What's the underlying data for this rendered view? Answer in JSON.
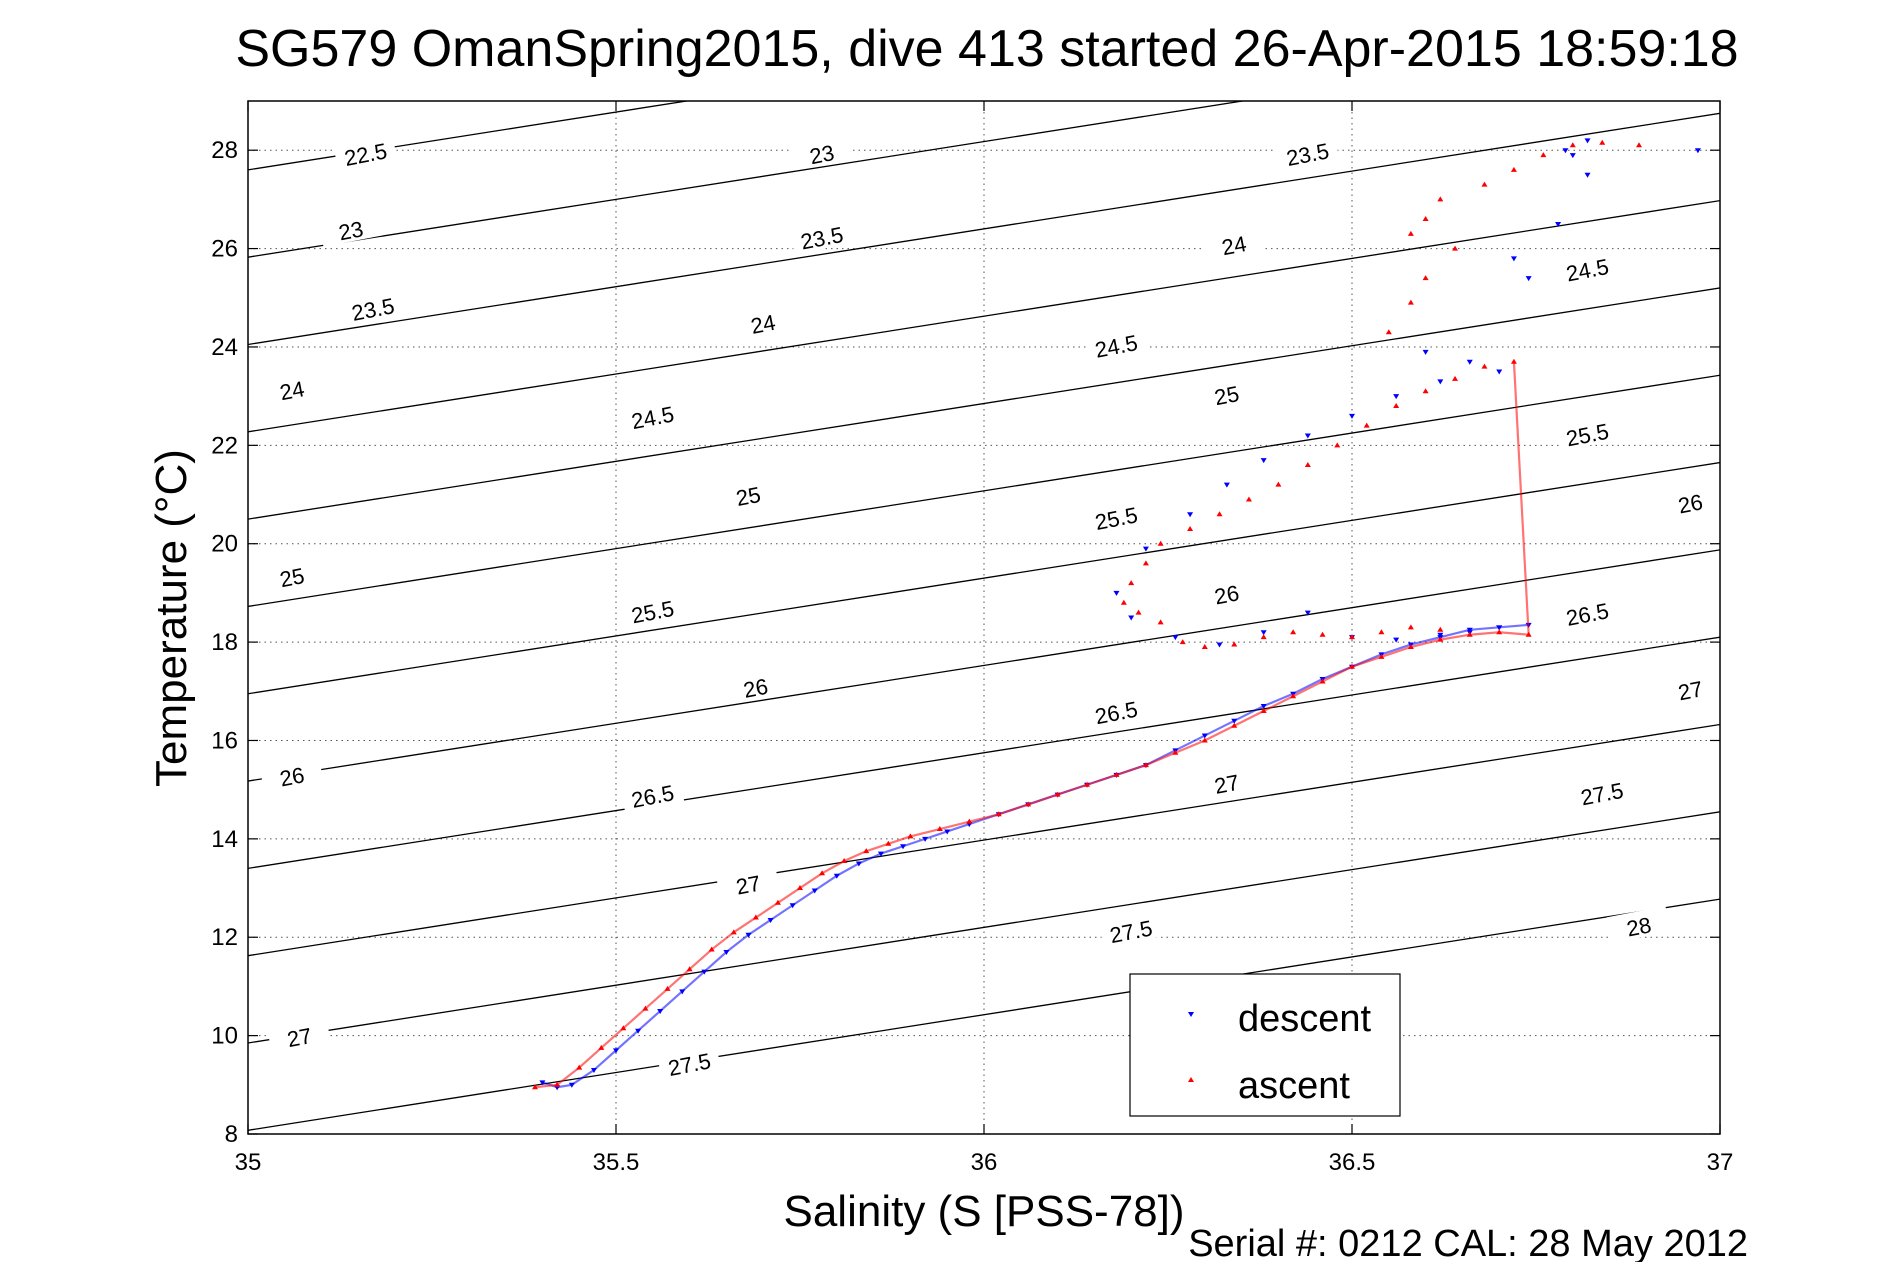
{
  "chart_data": {
    "type": "scatter",
    "title": "SG579 OmanSpring2015, dive 413 started 26-Apr-2015 18:59:18",
    "xlabel": "Salinity (S [PSS-78])",
    "ylabel": "Temperature (°C)",
    "footer": "Serial #: 0212  CAL: 28 May 2012",
    "xlim": [
      35,
      37
    ],
    "ylim": [
      8,
      29
    ],
    "xticks": [
      "35",
      "35.5",
      "36",
      "36.5",
      "37"
    ],
    "yticks": [
      "8",
      "10",
      "12",
      "14",
      "16",
      "18",
      "20",
      "22",
      "24",
      "26",
      "28"
    ],
    "grid": true,
    "legend_position": "bottom-right",
    "contour_labels": [
      {
        "text": "22.5",
        "s": 35.16,
        "t": 27.9
      },
      {
        "text": "23",
        "s": 35.78,
        "t": 27.9
      },
      {
        "text": "23.5",
        "s": 36.44,
        "t": 27.9
      },
      {
        "text": "23",
        "s": 35.14,
        "t": 26.35
      },
      {
        "text": "23.5",
        "s": 35.78,
        "t": 26.2
      },
      {
        "text": "24",
        "s": 36.34,
        "t": 26.05
      },
      {
        "text": "23.5",
        "s": 35.17,
        "t": 24.75
      },
      {
        "text": "24",
        "s": 35.7,
        "t": 24.45
      },
      {
        "text": "24.5",
        "s": 36.82,
        "t": 25.55
      },
      {
        "text": "24",
        "s": 35.06,
        "t": 23.1
      },
      {
        "text": "24.5",
        "s": 35.55,
        "t": 22.55
      },
      {
        "text": "24.5",
        "s": 36.18,
        "t": 24.0
      },
      {
        "text": "25",
        "s": 36.33,
        "t": 23.0
      },
      {
        "text": "25.5",
        "s": 36.82,
        "t": 22.2
      },
      {
        "text": "25",
        "s": 35.68,
        "t": 20.95
      },
      {
        "text": "25.5",
        "s": 36.18,
        "t": 20.5
      },
      {
        "text": "26",
        "s": 36.96,
        "t": 20.8
      },
      {
        "text": "25",
        "s": 35.06,
        "t": 19.3
      },
      {
        "text": "25.5",
        "s": 35.55,
        "t": 18.6
      },
      {
        "text": "26",
        "s": 36.33,
        "t": 18.95
      },
      {
        "text": "26.5",
        "s": 36.82,
        "t": 18.55
      },
      {
        "text": "26",
        "s": 35.69,
        "t": 17.05
      },
      {
        "text": "26.5",
        "s": 36.18,
        "t": 16.55
      },
      {
        "text": "27",
        "s": 36.96,
        "t": 17.0
      },
      {
        "text": "26",
        "s": 35.06,
        "t": 15.25
      },
      {
        "text": "26.5",
        "s": 35.55,
        "t": 14.85
      },
      {
        "text": "27",
        "s": 36.33,
        "t": 15.1
      },
      {
        "text": "27.5",
        "s": 36.84,
        "t": 14.9
      },
      {
        "text": "27",
        "s": 35.68,
        "t": 13.05
      },
      {
        "text": "27.5",
        "s": 36.2,
        "t": 12.1
      },
      {
        "text": "28",
        "s": 36.89,
        "t": 12.2
      },
      {
        "text": "27",
        "s": 35.07,
        "t": 9.95
      },
      {
        "text": "27.5",
        "s": 35.6,
        "t": 9.4
      }
    ],
    "series": [
      {
        "name": "descent",
        "color": "#0000ff",
        "marker": "triangle-down",
        "x": [
          35.4,
          35.42,
          35.44,
          35.47,
          35.5,
          35.53,
          35.56,
          35.59,
          35.62,
          35.65,
          35.68,
          35.71,
          35.74,
          35.77,
          35.8,
          35.83,
          35.86,
          35.89,
          35.92,
          35.95,
          35.98,
          36.02,
          36.06,
          36.1,
          36.14,
          36.18,
          36.22,
          36.26,
          36.3,
          36.34,
          36.38,
          36.42,
          36.46,
          36.5,
          36.54,
          36.58,
          36.62,
          36.66,
          36.7,
          36.74,
          36.6,
          36.66,
          36.7,
          36.62,
          36.56,
          36.5,
          36.44,
          36.38,
          36.33,
          36.28,
          36.22,
          36.18,
          36.2,
          36.26,
          36.32,
          36.38,
          36.44,
          36.5,
          36.56,
          36.62,
          36.66,
          36.7,
          36.74,
          36.78,
          36.82,
          36.8,
          36.82,
          36.79,
          36.72,
          36.97
        ],
        "y": [
          9.05,
          8.95,
          9.0,
          9.3,
          9.7,
          10.1,
          10.5,
          10.9,
          11.3,
          11.7,
          12.05,
          12.35,
          12.65,
          12.95,
          13.25,
          13.5,
          13.7,
          13.85,
          14.0,
          14.15,
          14.3,
          14.5,
          14.7,
          14.9,
          15.1,
          15.3,
          15.5,
          15.8,
          16.1,
          16.4,
          16.7,
          16.95,
          17.25,
          17.5,
          17.75,
          17.95,
          18.1,
          18.25,
          18.3,
          18.35,
          23.9,
          23.7,
          23.5,
          23.3,
          23.0,
          22.6,
          22.2,
          21.7,
          21.2,
          20.6,
          19.9,
          19.0,
          18.5,
          18.1,
          17.95,
          18.2,
          18.6,
          18.1,
          18.05,
          18.15,
          18.2,
          18.3,
          25.4,
          26.5,
          27.5,
          27.9,
          28.2,
          28.0,
          25.8,
          28.0
        ]
      },
      {
        "name": "ascent",
        "color": "#ff0000",
        "marker": "triangle-up",
        "x": [
          35.39,
          35.42,
          35.45,
          35.48,
          35.51,
          35.54,
          35.57,
          35.6,
          35.63,
          35.66,
          35.69,
          35.72,
          35.75,
          35.78,
          35.81,
          35.84,
          35.87,
          35.9,
          35.94,
          35.98,
          36.02,
          36.06,
          36.1,
          36.14,
          36.18,
          36.22,
          36.26,
          36.3,
          36.34,
          36.38,
          36.42,
          36.46,
          36.5,
          36.54,
          36.58,
          36.62,
          36.66,
          36.7,
          36.74,
          36.72,
          36.68,
          36.64,
          36.6,
          36.56,
          36.52,
          36.48,
          36.44,
          36.4,
          36.36,
          36.32,
          36.28,
          36.24,
          36.22,
          36.2,
          36.19,
          36.21,
          36.24,
          36.27,
          36.3,
          36.34,
          36.38,
          36.42,
          36.46,
          36.5,
          36.54,
          36.58,
          36.62,
          36.55,
          36.58,
          36.6,
          36.64,
          36.58,
          36.6,
          36.62,
          36.68,
          36.72,
          36.76,
          36.8,
          36.84,
          36.89
        ],
        "y": [
          8.95,
          9.0,
          9.35,
          9.75,
          10.15,
          10.55,
          10.95,
          11.35,
          11.75,
          12.1,
          12.4,
          12.7,
          13.0,
          13.3,
          13.55,
          13.75,
          13.9,
          14.05,
          14.2,
          14.35,
          14.5,
          14.7,
          14.9,
          15.1,
          15.3,
          15.5,
          15.75,
          16.0,
          16.3,
          16.6,
          16.9,
          17.2,
          17.5,
          17.7,
          17.9,
          18.05,
          18.15,
          18.2,
          18.15,
          23.7,
          23.6,
          23.35,
          23.1,
          22.8,
          22.4,
          22.0,
          21.6,
          21.2,
          20.9,
          20.6,
          20.3,
          20.0,
          19.6,
          19.2,
          18.8,
          18.6,
          18.4,
          18.0,
          17.9,
          17.95,
          18.1,
          18.2,
          18.15,
          18.1,
          18.2,
          18.3,
          18.25,
          24.3,
          24.9,
          25.4,
          26.0,
          26.3,
          26.6,
          27.0,
          27.3,
          27.6,
          27.9,
          28.1,
          28.15,
          28.1
        ]
      }
    ]
  }
}
